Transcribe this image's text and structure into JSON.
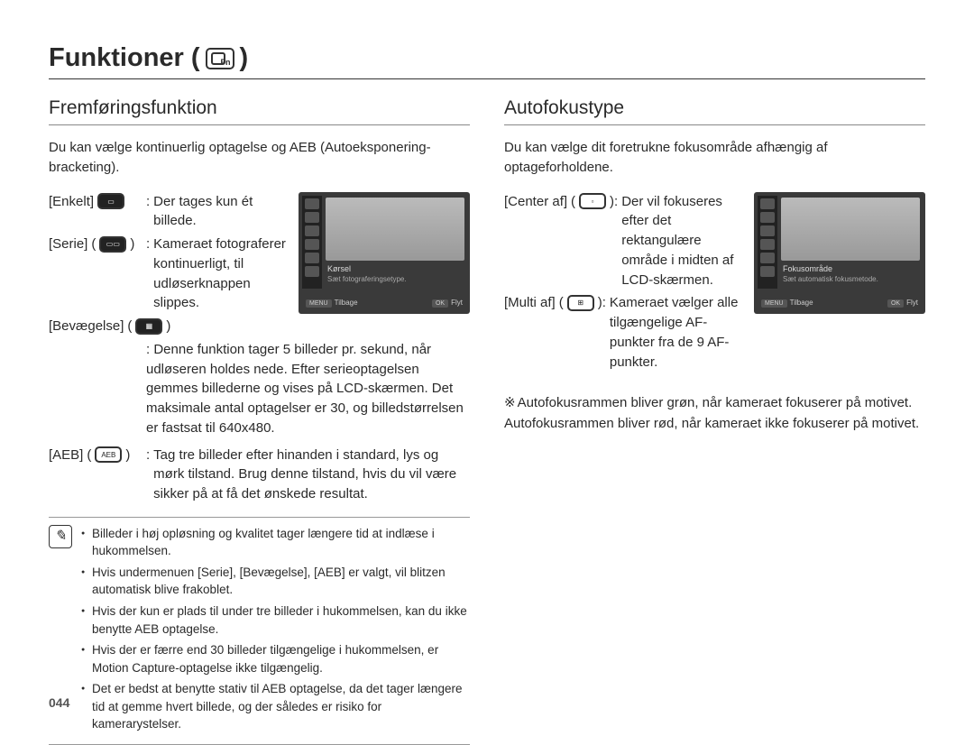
{
  "page_title": "Funktioner (",
  "page_title_suffix": " )",
  "fn_badge": "Fn",
  "page_number": "044",
  "left": {
    "heading": "Fremføringsfunktion",
    "intro": "Du kan vælge kontinuerlig optagelse og AEB (Autoeksponering-bracketing).",
    "options": {
      "enkelt": {
        "label": "[Enkelt]",
        "icon": "single-icon",
        "desc": "Der tages kun ét billede."
      },
      "serie": {
        "label": "[Serie]",
        "icon": "burst-icon",
        "desc": "Kameraet fotograferer kontinuerligt, til udløserknappen slippes."
      },
      "bevaegelse": {
        "label": "[Bevægelse]",
        "icon": "motion-icon",
        "desc": "Denne funktion tager 5 billeder pr. sekund, når udløseren holdes nede. Efter serieoptagelsen gemmes billederne og vises på LCD-skærmen. Det maksimale antal optagelser er 30, og billedstørrelsen er fastsat til 640x480."
      },
      "aeb": {
        "label": "[AEB]",
        "icon": "aeb-icon",
        "desc": "Tag tre billeder efter hinanden i standard, lys og mørk tilstand. Brug denne tilstand, hvis du vil være sikker på at få det ønskede resultat."
      }
    },
    "screenshot": {
      "caption1": "Kørsel",
      "caption2": "Sæt fotograferingsetype.",
      "back": "Tilbage",
      "move": "Flyt",
      "menu_btn": "MENU",
      "ok_btn": "OK"
    },
    "notes": [
      "Billeder i høj opløsning og kvalitet tager længere tid at indlæse i hukommelsen.",
      "Hvis undermenuen [Serie], [Bevægelse], [AEB] er valgt, vil blitzen automatisk blive frakoblet.",
      "Hvis der kun er plads til under tre billeder i hukommelsen, kan du ikke benytte AEB optagelse.",
      "Hvis der er færre end 30 billeder tilgængelige i hukommelsen, er Motion Capture-optagelse ikke tilgængelig.",
      "Det er bedst at benytte stativ til AEB optagelse, da det tager længere tid at gemme hvert billede, og der således er risiko for kamerarystelser."
    ]
  },
  "right": {
    "heading": "Autofokustype",
    "intro": "Du kan vælge dit foretrukne fokusområde afhængig af optageforholdene.",
    "options": {
      "center": {
        "label": "[Center af]",
        "icon": "center-af-icon",
        "desc": "Der vil fokuseres efter det rektangulære område i midten af LCD-skærmen."
      },
      "multi": {
        "label": "[Multi af]",
        "icon": "multi-af-icon",
        "desc": "Kameraet vælger alle tilgængelige AF-punkter fra de 9 AF-punkter."
      }
    },
    "screenshot": {
      "caption1": "Fokusområde",
      "caption2": "Sæt automatisk fokusmetode.",
      "back": "Tilbage",
      "move": "Flyt",
      "menu_btn": "MENU",
      "ok_btn": "OK"
    },
    "footnote_prefix": "※",
    "footnote": "Autofokusrammen bliver grøn, når kameraet fokuserer på motivet. Autofokusrammen bliver rød, når kameraet ikke fokuserer på motivet."
  }
}
